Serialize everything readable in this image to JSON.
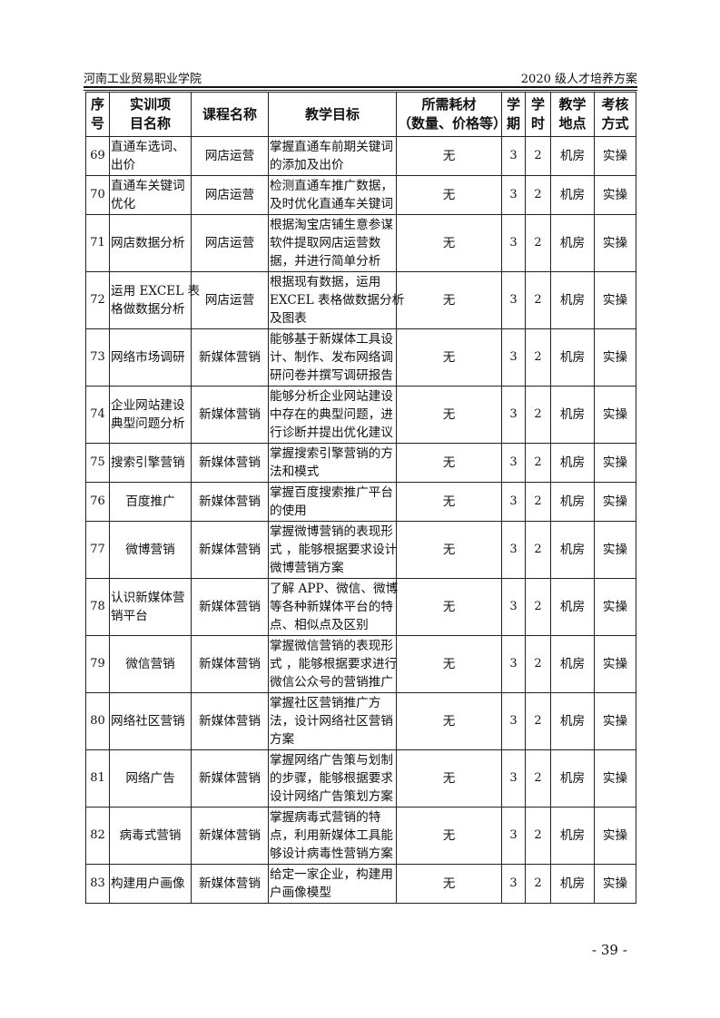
{
  "header": {
    "left": "河南工业贸易职业学院",
    "right": "2020 级人才培养方案"
  },
  "table": {
    "columns": [
      [
        "序",
        "号"
      ],
      [
        "实训项",
        "目名称"
      ],
      [
        "课程名称"
      ],
      [
        "教学目标"
      ],
      [
        "所需耗材",
        "（数量、价格等）"
      ],
      [
        "学",
        "期"
      ],
      [
        "学",
        "时"
      ],
      [
        "教学",
        "地点"
      ],
      [
        "考核",
        "方式"
      ]
    ],
    "rows": [
      {
        "no": "69",
        "name": [
          "直通车选词、",
          "出价"
        ],
        "course": "网店运营",
        "goal": [
          "掌握直通车前期关键词",
          "的添加及出价"
        ],
        "material": "无",
        "term": "3",
        "hours": "2",
        "place": "机房",
        "exam": "实操"
      },
      {
        "no": "70",
        "name": [
          "直通车关键词",
          "优化"
        ],
        "course": "网店运营",
        "goal": [
          "检测直通车推广数据，",
          "及时优化直通车关键词"
        ],
        "material": "无",
        "term": "3",
        "hours": "2",
        "place": "机房",
        "exam": "实操"
      },
      {
        "no": "71",
        "name": [
          "网店数据分析"
        ],
        "course": "网店运营",
        "goal": [
          "根据淘宝店铺生意参谋",
          "软件提取网店运营数",
          "据，并进行简单分析"
        ],
        "material": "无",
        "term": "3",
        "hours": "2",
        "place": "机房",
        "exam": "实操"
      },
      {
        "no": "72",
        "name": [
          "运用 EXCEL 表",
          "格做数据分析"
        ],
        "course": "网店运营",
        "goal": [
          "根据现有数据，运用",
          "EXCEL 表格做数据分析",
          "及图表"
        ],
        "material": "无",
        "term": "3",
        "hours": "2",
        "place": "机房",
        "exam": "实操"
      },
      {
        "no": "73",
        "name": [
          "网络市场调研"
        ],
        "course": "新媒体营销",
        "goal": [
          "能够基于新媒体工具设",
          "计、制作、发布网络调",
          "研问卷并撰写调研报告"
        ],
        "material": "无",
        "term": "3",
        "hours": "2",
        "place": "机房",
        "exam": "实操"
      },
      {
        "no": "74",
        "name": [
          "企业网站建设",
          "典型问题分析"
        ],
        "course": "新媒体营销",
        "goal": [
          "能够分析企业网站建设",
          "中存在的典型问题，进",
          "行诊断并提出优化建议"
        ],
        "material": "无",
        "term": "3",
        "hours": "2",
        "place": "机房",
        "exam": "实操"
      },
      {
        "no": "75",
        "name": [
          "搜索引擎营销"
        ],
        "course": "新媒体营销",
        "goal": [
          "掌握搜索引擎营销的方",
          "法和模式"
        ],
        "material": "无",
        "term": "3",
        "hours": "2",
        "place": "机房",
        "exam": "实操"
      },
      {
        "no": "76",
        "name": [
          "百度推广"
        ],
        "nameCenter": true,
        "course": "新媒体营销",
        "goal": [
          "掌握百度搜索推广平台",
          "的使用"
        ],
        "material": "无",
        "term": "3",
        "hours": "2",
        "place": "机房",
        "exam": "实操"
      },
      {
        "no": "77",
        "name": [
          "微博营销"
        ],
        "nameCenter": true,
        "course": "新媒体营销",
        "goal": [
          "掌握微博营销的表现形",
          "式 ，能够根据要求设计",
          "微博营销方案"
        ],
        "material": "无",
        "term": "3",
        "hours": "2",
        "place": "机房",
        "exam": "实操"
      },
      {
        "no": "78",
        "name": [
          "认识新媒体营",
          "销平台"
        ],
        "course": "新媒体营销",
        "goal": [
          "了解 APP、微信、微博",
          "等各种新媒体平台的特",
          "点、相似点及区别"
        ],
        "material": "无",
        "term": "3",
        "hours": "2",
        "place": "机房",
        "exam": "实操"
      },
      {
        "no": "79",
        "name": [
          "微信营销"
        ],
        "nameCenter": true,
        "course": "新媒体营销",
        "goal": [
          "掌握微信营销的表现形",
          "式 ，能够根据要求进行",
          "微信公众号的营销推广"
        ],
        "material": "无",
        "term": "3",
        "hours": "2",
        "place": "机房",
        "exam": "实操"
      },
      {
        "no": "80",
        "name": [
          "网络社区营销"
        ],
        "course": "新媒体营销",
        "goal": [
          "掌握社区营销推广方",
          "法，设计网络社区营销",
          "方案"
        ],
        "material": "无",
        "term": "3",
        "hours": "2",
        "place": "机房",
        "exam": "实操"
      },
      {
        "no": "81",
        "name": [
          "网络广告"
        ],
        "nameCenter": true,
        "course": "新媒体营销",
        "goal": [
          "掌握网络广告策与划制",
          "的步骤，能够根据要求",
          "设计网络广告策划方案"
        ],
        "material": "无",
        "term": "3",
        "hours": "2",
        "place": "机房",
        "exam": "实操"
      },
      {
        "no": "82",
        "name": [
          "病毒式营销"
        ],
        "nameCenter": true,
        "course": "新媒体营销",
        "goal": [
          "掌握病毒式营销的特",
          "点，利用新媒体工具能",
          "够设计病毒性营销方案"
        ],
        "material": "无",
        "term": "3",
        "hours": "2",
        "place": "机房",
        "exam": "实操"
      },
      {
        "no": "83",
        "name": [
          "构建用户画像"
        ],
        "course": "新媒体营销",
        "goal": [
          "给定一家企业，构建用",
          "户画像模型"
        ],
        "material": "无",
        "term": "3",
        "hours": "2",
        "place": "机房",
        "exam": "实操"
      }
    ]
  },
  "page_number": "- 39 -"
}
